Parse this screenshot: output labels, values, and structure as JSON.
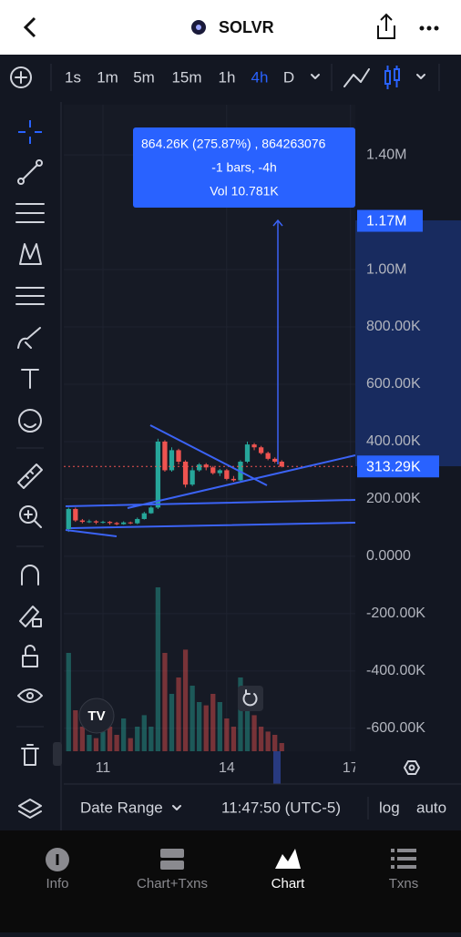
{
  "header": {
    "title": "SOLVR"
  },
  "toolbar": {
    "intervals": [
      "1s",
      "1m",
      "5m",
      "15m",
      "1h",
      "4h",
      "D"
    ],
    "active_interval": 5
  },
  "measure": {
    "line1": "864.26K (275.87%) , 864263076",
    "line2": "-1 bars, -4h",
    "line3": "Vol 10.781K"
  },
  "footer": {
    "date_range": "Date Range",
    "time": "11:47:50 (UTC-5)",
    "log": "log",
    "auto": "auto"
  },
  "tabs": [
    "Info",
    "Chart+Txns",
    "Chart",
    "Txns"
  ],
  "active_tab": 2,
  "chart_data": {
    "type": "candlestick",
    "open": [
      95000,
      165000,
      125000,
      120000,
      122000,
      118000,
      120000,
      116000,
      112000,
      118000,
      115000,
      130000,
      150000,
      170000,
      400000,
      300000,
      370000,
      330000,
      250000,
      300000,
      320000,
      310000,
      290000,
      300000,
      270000,
      265000,
      330000,
      390000,
      380000,
      360000,
      340000,
      330000
    ],
    "close": [
      165000,
      125000,
      120000,
      122000,
      118000,
      120000,
      116000,
      112000,
      118000,
      115000,
      130000,
      150000,
      170000,
      400000,
      300000,
      370000,
      330000,
      250000,
      300000,
      320000,
      310000,
      290000,
      300000,
      270000,
      265000,
      330000,
      390000,
      380000,
      360000,
      340000,
      330000,
      313290
    ],
    "high": [
      170000,
      170000,
      130000,
      128000,
      126000,
      124000,
      123000,
      120000,
      122000,
      121000,
      135000,
      155000,
      175000,
      410000,
      405000,
      380000,
      375000,
      335000,
      310000,
      325000,
      325000,
      315000,
      305000,
      305000,
      280000,
      335000,
      400000,
      395000,
      385000,
      365000,
      345000,
      335000
    ],
    "low": [
      85000,
      120000,
      115000,
      116000,
      112000,
      114000,
      110000,
      108000,
      110000,
      112000,
      112000,
      128000,
      148000,
      165000,
      295000,
      295000,
      320000,
      240000,
      245000,
      295000,
      300000,
      285000,
      280000,
      265000,
      260000,
      262000,
      325000,
      370000,
      355000,
      335000,
      325000,
      310000
    ],
    "volume": [
      60,
      25,
      15,
      10,
      8,
      12,
      15,
      10,
      20,
      8,
      15,
      22,
      15,
      100,
      60,
      35,
      45,
      62,
      40,
      30,
      28,
      35,
      30,
      20,
      15,
      45,
      30,
      22,
      15,
      12,
      10,
      5
    ],
    "up_color": "#26a69a",
    "down_color": "#ef5350",
    "xlim": [
      -0.7,
      41.7
    ],
    "xticks": [
      {
        "value": 5,
        "label": "11"
      },
      {
        "value": 23,
        "label": "14"
      },
      {
        "value": 41,
        "label": "17"
      }
    ],
    "ylim": [
      -680000,
      1575000
    ],
    "yticks": [
      {
        "value": 1400000,
        "label": "1.40M"
      },
      {
        "value": 1000000,
        "label": "1.00M"
      },
      {
        "value": 800000,
        "label": "800.00K"
      },
      {
        "value": 600000,
        "label": "600.00K"
      },
      {
        "value": 400000,
        "label": "400.00K"
      },
      {
        "value": 200000,
        "label": "200.00K"
      },
      {
        "value": 0,
        "label": "0.0000"
      },
      {
        "value": -200000,
        "label": "-200.00K"
      },
      {
        "value": -400000,
        "label": "-400.00K"
      },
      {
        "value": -600000,
        "label": "-600.00K"
      }
    ],
    "y2lim": [
      0,
      100
    ],
    "measure_top": {
      "value": 1170000,
      "label": "1.17M"
    },
    "last_price": {
      "value": 313290,
      "label": "313.29K"
    },
    "grid": true
  }
}
